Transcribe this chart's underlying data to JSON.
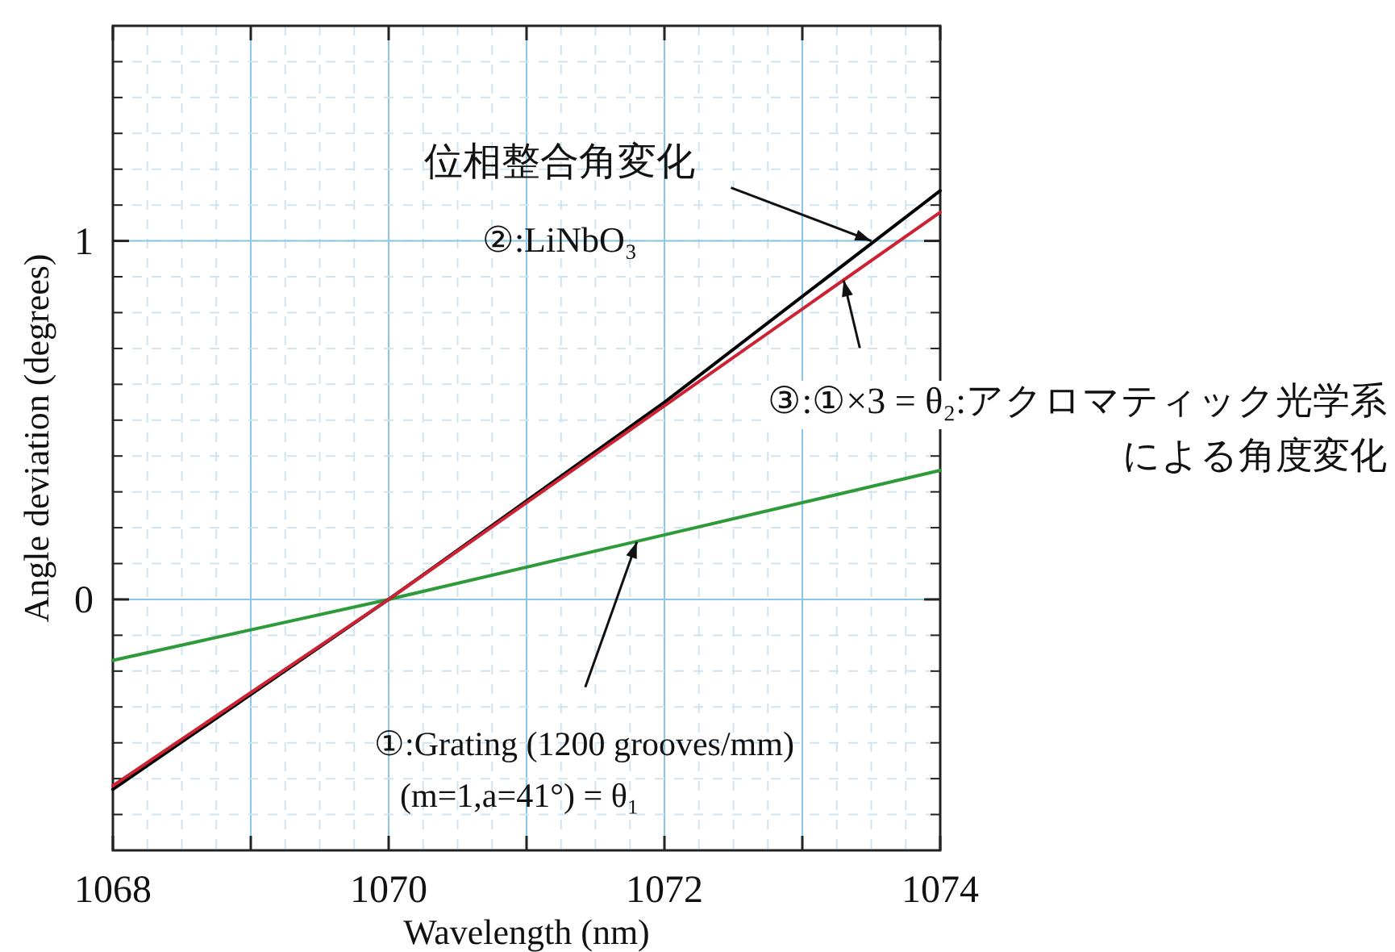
{
  "chart_data": {
    "type": "line",
    "xlabel": "Wavelength (nm)",
    "ylabel": "Angle deviation (degrees)",
    "xlim": [
      1068,
      1074
    ],
    "ylim": [
      -0.7,
      1.6
    ],
    "xticks": [
      1068,
      {
        "value": 1069,
        "label": null
      },
      1070,
      {
        "value": 1071,
        "label": null
      },
      1072,
      {
        "value": 1073,
        "label": null
      },
      1074
    ],
    "yticks": [
      0,
      1
    ],
    "grid": true,
    "marker": "none",
    "line_style": "solid",
    "series": [
      {
        "color": "#2e9a3a",
        "x": [
          1068,
          1070,
          1074
        ],
        "values": [
          -0.17,
          0,
          0.36
        ]
      },
      {
        "color": "#000000",
        "x": [
          1068,
          1070,
          1072,
          1074
        ],
        "values": [
          -0.53,
          0,
          0.55,
          1.14
        ]
      },
      {
        "color": "#cc2233",
        "x": [
          1068,
          1070,
          1074
        ],
        "values": [
          -0.52,
          0,
          1.08
        ]
      }
    ],
    "annotations": [
      {
        "text": "位相整合角変化②:LiNbO₃",
        "x": 1073.5,
        "y": 1.0
      },
      {
        "text": "③:①×3 = θ₂:アクロマティック光学系による角度変化",
        "x": 1073.3,
        "y": 0.89
      },
      {
        "text": "①:Grating (1200 grooves/mm)\n(m=1,a=41°) = θ₁",
        "x": 1071.8,
        "y": 0.16
      }
    ]
  }
}
